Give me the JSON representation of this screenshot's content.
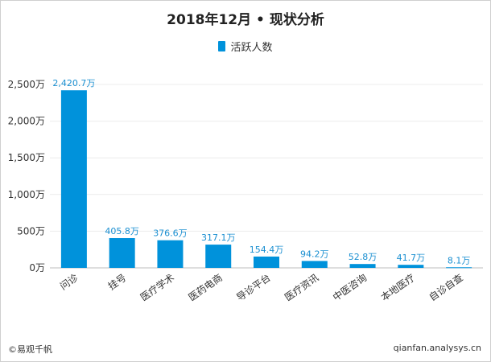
{
  "chart_data": {
    "type": "bar",
    "title": "2018年12月 • 现状分析",
    "legend": [
      "活跃人数"
    ],
    "categories": [
      "问诊",
      "挂号",
      "医疗学术",
      "医药电商",
      "导诊平台",
      "医疗资讯",
      "中医咨询",
      "本地医疗",
      "自诊自查"
    ],
    "values": [
      2420.7,
      405.8,
      376.6,
      317.1,
      154.4,
      94.2,
      52.8,
      41.7,
      8.1
    ],
    "data_labels": [
      "2,420.7万",
      "405.8万",
      "376.6万",
      "317.1万",
      "154.4万",
      "94.2万",
      "52.8万",
      "41.7万",
      "8.1万"
    ],
    "ylim": [
      0,
      2500
    ],
    "yticks": [
      0,
      500,
      1000,
      1500,
      2000,
      2500
    ],
    "ytick_labels": [
      "0万",
      "500万",
      "1,000万",
      "1,500万",
      "2,000万",
      "2,500万"
    ],
    "xlabel": "",
    "ylabel": "",
    "colors": {
      "bar": "#0092db",
      "label": "#1a8fd1",
      "grid": "#ececec"
    }
  },
  "footer": {
    "left": "©易观千帆",
    "right": "qianfan.analysys.cn"
  }
}
